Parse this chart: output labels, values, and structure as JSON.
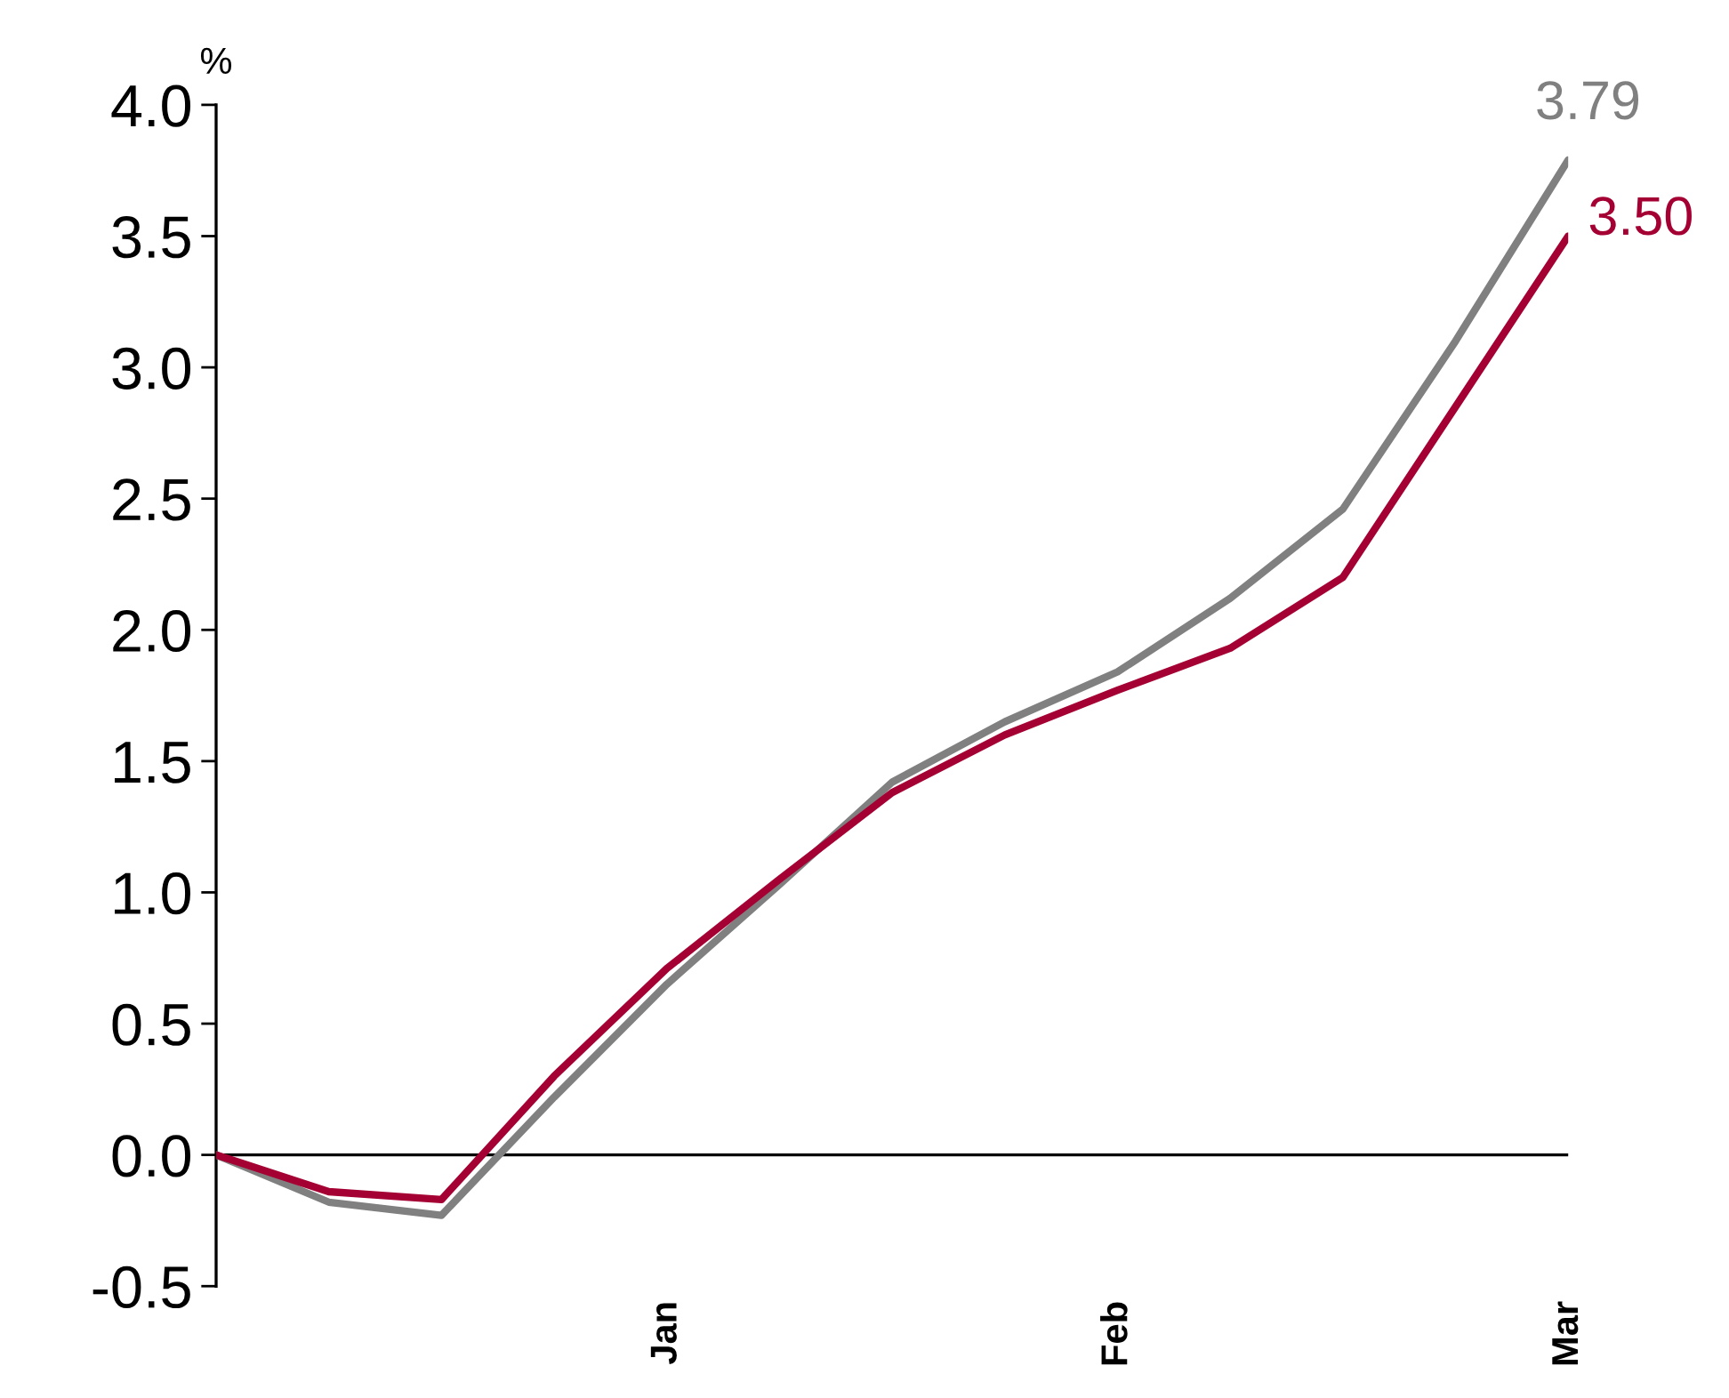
{
  "chart_data": {
    "type": "line",
    "ylabel": "%",
    "categories": [
      null,
      null,
      null,
      null,
      "Jan",
      null,
      null,
      null,
      "Feb",
      null,
      null,
      null,
      "Mar"
    ],
    "ylim": [
      -0.5,
      4.0
    ],
    "yticks": [
      {
        "value": -0.5,
        "label": "-0.5"
      },
      {
        "value": 0,
        "label": "0.0"
      },
      {
        "value": 0.5,
        "label": "0.5"
      },
      {
        "value": 1,
        "label": "1.0"
      },
      {
        "value": 1.5,
        "label": "1.5"
      },
      {
        "value": 2,
        "label": "2.0"
      },
      {
        "value": 2.5,
        "label": "2.5"
      },
      {
        "value": 3,
        "label": "3.0"
      },
      {
        "value": 3.5,
        "label": "3.5"
      },
      {
        "value": 4,
        "label": "4.0"
      }
    ],
    "grid": false,
    "legend": false,
    "marker": "none",
    "line_style": "solid",
    "ref_lines": [
      {
        "axis": "y",
        "value": 0,
        "color": "#000000"
      }
    ],
    "series": [
      {
        "color": "#808080",
        "values": [
          0,
          -0.18,
          -0.23,
          0.22,
          0.65,
          1.03,
          1.42,
          1.65,
          1.84,
          2.12,
          2.46,
          3.1,
          3.79
        ],
        "value_labels": [
          null,
          null,
          null,
          null,
          null,
          null,
          null,
          null,
          null,
          null,
          null,
          null,
          "3.79"
        ]
      },
      {
        "color": "#a50034",
        "values": [
          0,
          -0.14,
          -0.17,
          0.3,
          0.71,
          1.05,
          1.38,
          1.6,
          1.77,
          1.93,
          2.2,
          2.85,
          3.5
        ],
        "value_labels": [
          null,
          null,
          null,
          null,
          null,
          null,
          null,
          null,
          null,
          null,
          null,
          null,
          "3.50"
        ]
      }
    ]
  }
}
